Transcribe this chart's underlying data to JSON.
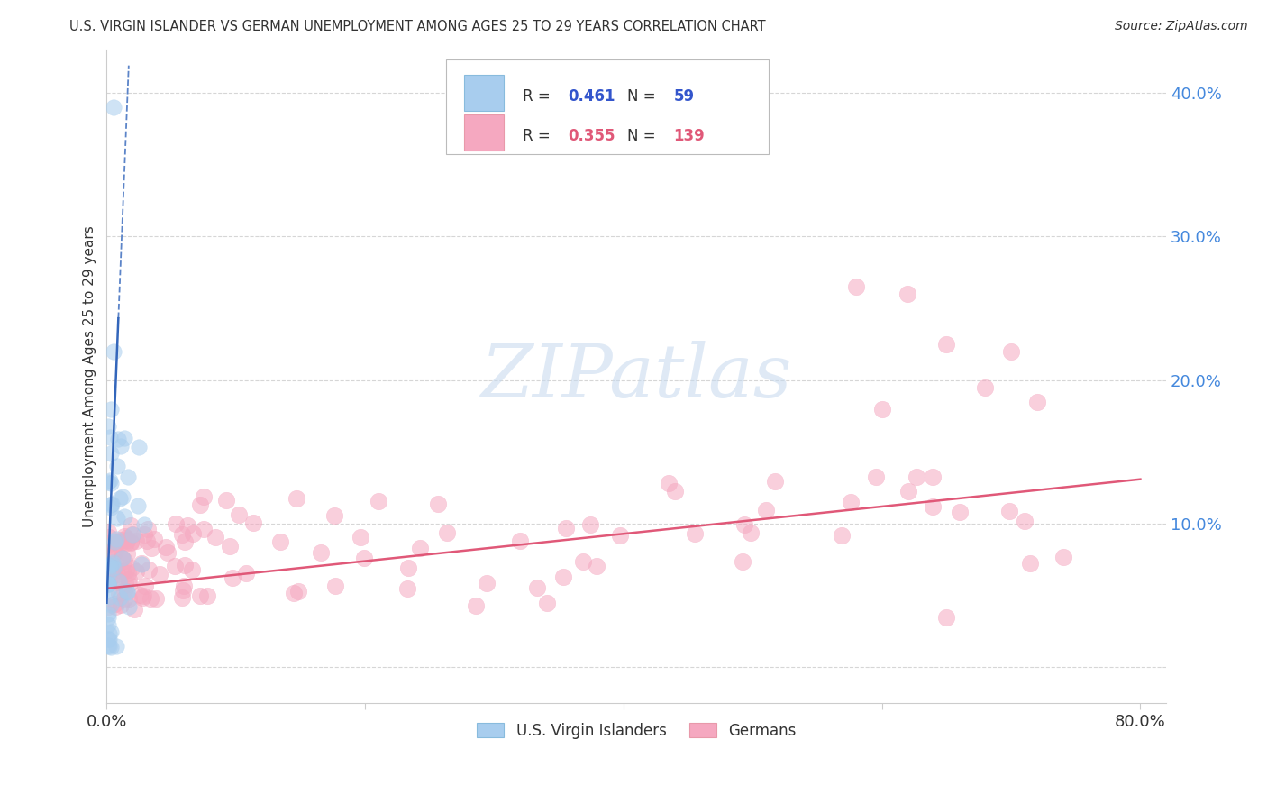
{
  "title": "U.S. VIRGIN ISLANDER VS GERMAN UNEMPLOYMENT AMONG AGES 25 TO 29 YEARS CORRELATION CHART",
  "source": "Source: ZipAtlas.com",
  "ylabel": "Unemployment Among Ages 25 to 29 years",
  "xlim": [
    0.0,
    0.82
  ],
  "ylim": [
    -0.025,
    0.43
  ],
  "xtick_positions": [
    0.0,
    0.2,
    0.4,
    0.6,
    0.8
  ],
  "xtick_labels": [
    "0.0%",
    "",
    "",
    "",
    "80.0%"
  ],
  "ytick_positions": [
    0.0,
    0.1,
    0.2,
    0.3,
    0.4
  ],
  "ytick_labels": [
    "",
    "10.0%",
    "20.0%",
    "30.0%",
    "40.0%"
  ],
  "legend_blue_R": "0.461",
  "legend_blue_N": "59",
  "legend_pink_R": "0.355",
  "legend_pink_N": "139",
  "blue_scatter_color": "#A8CDEE",
  "pink_scatter_color": "#F5A8C0",
  "blue_line_color": "#3366BB",
  "pink_line_color": "#E05878",
  "ytick_color": "#4488DD",
  "text_color": "#333333",
  "grid_color": "#CCCCCC",
  "watermark_color": "#C5D8EE",
  "watermark_alpha": 0.55,
  "legend_R_color": "#3355CC",
  "legend_N_color": "#3355CC",
  "legend_pink_R_color": "#E05878",
  "legend_pink_N_color": "#E05878"
}
